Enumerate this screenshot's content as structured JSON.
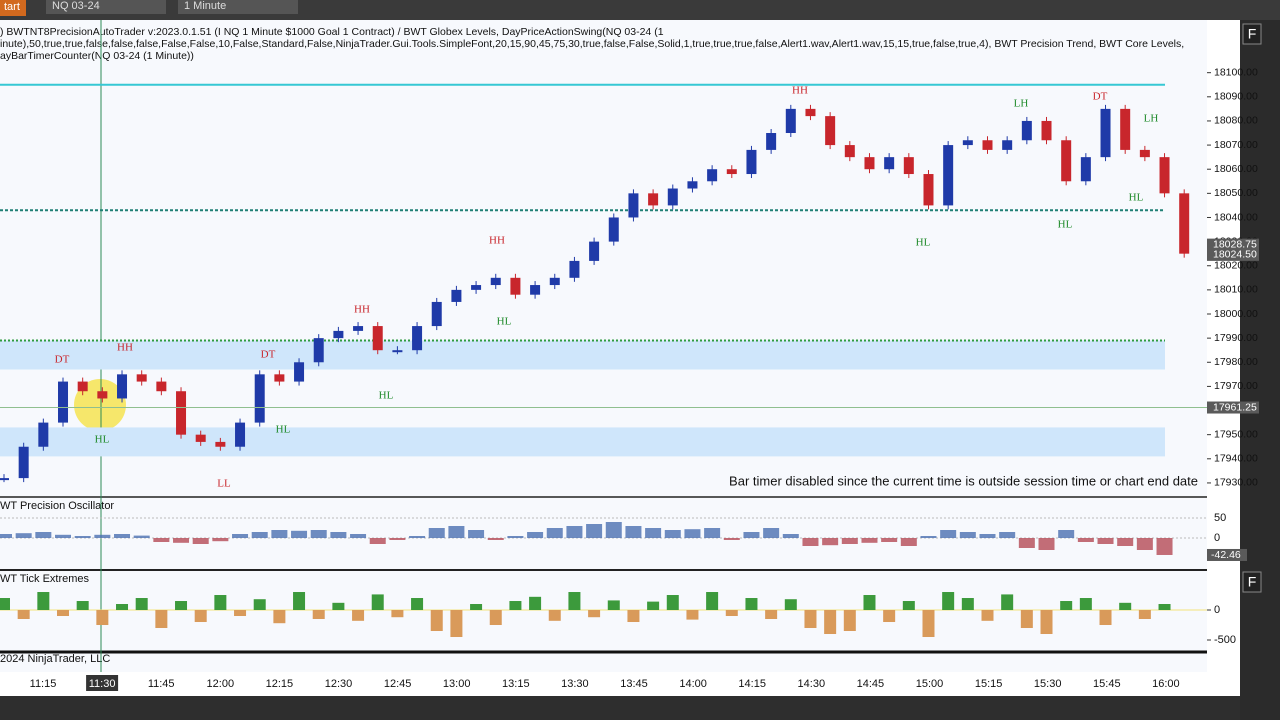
{
  "toolbar": {
    "start": "tart",
    "instrument": "NQ 03-24",
    "interval": "1 Minute"
  },
  "header": {
    "line1": ") BWTNT8PrecisionAutoTrader v:2023.0.1.51 (I NQ 1 Minute $1000 Goal 1 Contract) / BWT Globex Levels, DayPriceActionSwing(NQ 03-24 (1",
    "line2": "inute),50,true,true,false,false,false,False,False,10,False,Standard,False,NinjaTrader.Gui.Tools.SimpleFont,20,15,90,45,75,30,true,false,False,Solid,1,true,true,true,false,Alert1.wav,Alert1.wav,15,15,true,false,true,4), BWT Precision Trend, BWT Core Levels,",
    "line3": "ayBarTimerCounter(NQ 03-24 (1 Minute))"
  },
  "price_panel": {
    "ylim": [
      17925,
      18121
    ],
    "yticks": [
      {
        "value": 18100,
        "label": "18100.00"
      },
      {
        "value": 18090,
        "label": "18090.00"
      },
      {
        "value": 18080,
        "label": "18080.00"
      },
      {
        "value": 18070,
        "label": "18070.00"
      },
      {
        "value": 18060,
        "label": "18060.00"
      },
      {
        "value": 18050,
        "label": "18050.00"
      },
      {
        "value": 18040,
        "label": "18040.00"
      },
      {
        "value": 18030,
        "label": "18030.00"
      },
      {
        "value": 18020,
        "label": "18020.00"
      },
      {
        "value": 18010,
        "label": "18010.00"
      },
      {
        "value": 18000,
        "label": "18000.00"
      },
      {
        "value": 17990,
        "label": "17990.00"
      },
      {
        "value": 17980,
        "label": "17980.00"
      },
      {
        "value": 17970,
        "label": "17970.00"
      },
      {
        "value": 17960,
        "label": "17960.00"
      },
      {
        "value": 17950,
        "label": "17950.00"
      },
      {
        "value": 17940,
        "label": "17940.00"
      },
      {
        "value": 17930,
        "label": "17930.00"
      }
    ],
    "price_markers": [
      {
        "value": 18028.75,
        "label": "18028.75"
      },
      {
        "value": 18024.5,
        "label": "18024.50"
      },
      {
        "value": 17961.25,
        "label": "17961.25"
      }
    ],
    "levels": [
      18095,
      18043,
      17989
    ],
    "zones": [
      [
        17977,
        17989
      ],
      [
        17941,
        17953
      ]
    ],
    "prices": [
      17932,
      17945,
      17955,
      17972,
      17968,
      17965,
      17975,
      17972,
      17968,
      17950,
      17947,
      17945,
      17955,
      17975,
      17972,
      17980,
      17990,
      17993,
      17995,
      17985,
      17985,
      17995,
      18005,
      18010,
      18012,
      18015,
      18008,
      18012,
      18015,
      18022,
      18030,
      18040,
      18050,
      18045,
      18052,
      18055,
      18060,
      18058,
      18068,
      18075,
      18085,
      18082,
      18070,
      18065,
      18060,
      18065,
      18058,
      18045,
      18070,
      18072,
      18068,
      18072,
      18080,
      18072,
      18055,
      18065,
      18085,
      18068,
      18065,
      18050,
      18025
    ],
    "annotations": [
      "DT",
      "HH",
      "HL",
      "LL",
      "DT",
      "HL",
      "HH",
      "HL",
      "HH",
      "HL",
      "HH",
      "LH",
      "DT",
      "LH",
      "HL",
      "HL",
      "HL"
    ],
    "message": "Bar timer disabled since the current time is outside session time or chart end date"
  },
  "oscillator": {
    "title": "WT Precision Oscillator",
    "ylim": [
      -75,
      100
    ],
    "yticks": [
      50,
      0
    ],
    "marker": {
      "value": -42.46,
      "label": "-42.46"
    },
    "values": [
      10,
      12,
      15,
      8,
      5,
      8,
      10,
      6,
      -10,
      -12,
      -15,
      -8,
      10,
      15,
      20,
      18,
      20,
      15,
      10,
      -15,
      -5,
      5,
      25,
      30,
      20,
      -5,
      5,
      15,
      25,
      30,
      35,
      40,
      30,
      25,
      20,
      22,
      25,
      -5,
      15,
      25,
      10,
      -20,
      -18,
      -15,
      -12,
      -10,
      -20,
      5,
      20,
      15,
      10,
      15,
      -25,
      -30,
      20,
      -10,
      -15,
      -20,
      -30,
      -42.46
    ]
  },
  "tick_extremes": {
    "title": "WT Tick Extremes",
    "ylim": [
      -700,
      617
    ],
    "yticks": [
      0,
      -500
    ],
    "values": [
      200,
      -150,
      300,
      -100,
      150,
      -250,
      100,
      200,
      -300,
      150,
      -200,
      250,
      -100,
      180,
      -220,
      300,
      -150,
      120,
      -180,
      260,
      -120,
      200,
      -350,
      -450,
      100,
      -250,
      150,
      220,
      -180,
      300,
      -120,
      160,
      -200,
      140,
      250,
      -160,
      300,
      -100,
      200,
      -150,
      180,
      -300,
      -400,
      -350,
      250,
      -200,
      150,
      -450,
      300,
      200,
      -180,
      260,
      -300,
      -400,
      150,
      200,
      -250,
      120,
      -150,
      100
    ],
    "copyright": "2024 NinjaTrader, LLC"
  },
  "time_axis": [
    "11:15",
    "11:30",
    "11:45",
    "12:00",
    "12:15",
    "12:30",
    "12:45",
    "13:00",
    "13:15",
    "13:30",
    "13:45",
    "14:00",
    "14:15",
    "14:30",
    "14:45",
    "15:00",
    "15:15",
    "15:30",
    "15:45",
    "16:00"
  ],
  "side_buttons": [
    "F",
    "F"
  ]
}
